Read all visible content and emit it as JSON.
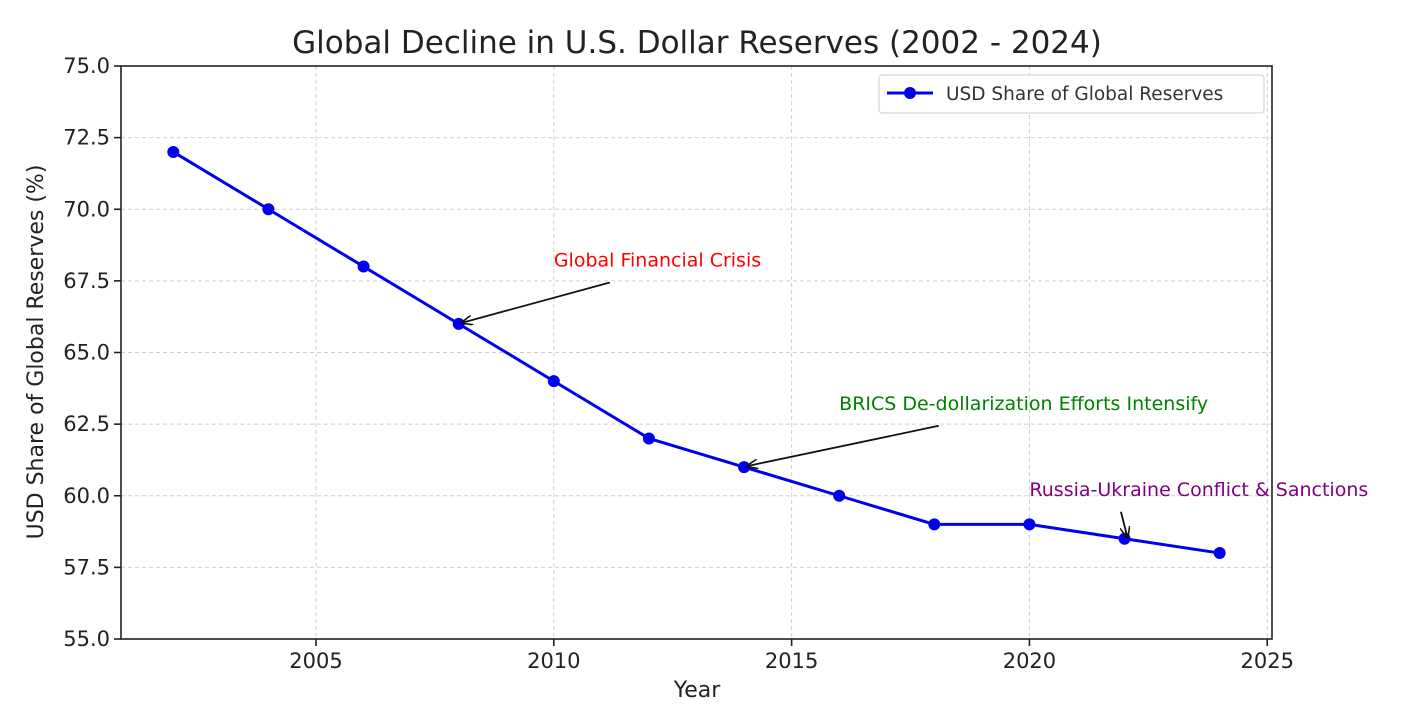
{
  "chart_data": {
    "type": "line",
    "title": "Global Decline in U.S. Dollar Reserves (2002 - 2024)",
    "xlabel": "Year",
    "ylabel": "USD Share of Global Reserves (%)",
    "xlim": [
      2000.9,
      2025.1
    ],
    "ylim": [
      55.0,
      75.0
    ],
    "xticks": [
      2005,
      2010,
      2015,
      2020,
      2025
    ],
    "xtick_labels": [
      "2005",
      "2010",
      "2015",
      "2020",
      "2025"
    ],
    "yticks": [
      55.0,
      57.5,
      60.0,
      62.5,
      65.0,
      67.5,
      70.0,
      72.5,
      75.0
    ],
    "ytick_labels": [
      "55.0",
      "57.5",
      "60.0",
      "62.5",
      "65.0",
      "67.5",
      "70.0",
      "72.5",
      "75.0"
    ],
    "grid": true,
    "legend_position": "top-right",
    "series": [
      {
        "name": "USD Share of Global Reserves",
        "color": "#0000ee",
        "marker": "circle",
        "x": [
          2002,
          2004,
          2006,
          2008,
          2010,
          2012,
          2014,
          2016,
          2018,
          2020,
          2022,
          2024
        ],
        "values": [
          72.0,
          70.0,
          68.0,
          66.0,
          64.0,
          62.0,
          61.0,
          60.0,
          59.0,
          59.0,
          58.5,
          58.0
        ]
      }
    ],
    "annotations": [
      {
        "text": "Global Financial Crisis",
        "color": "#ff0000",
        "point": [
          2008,
          66.0
        ],
        "text_at": [
          2010,
          68.0
        ]
      },
      {
        "text": "BRICS De-dollarization Efforts Intensify",
        "color": "#008000",
        "point": [
          2014,
          61.0
        ],
        "text_at": [
          2016,
          63.0
        ]
      },
      {
        "text": "Russia-Ukraine Conflict & Sanctions",
        "color": "#800080",
        "point": [
          2022,
          58.5
        ],
        "text_at": [
          2020,
          60.0
        ]
      }
    ]
  }
}
